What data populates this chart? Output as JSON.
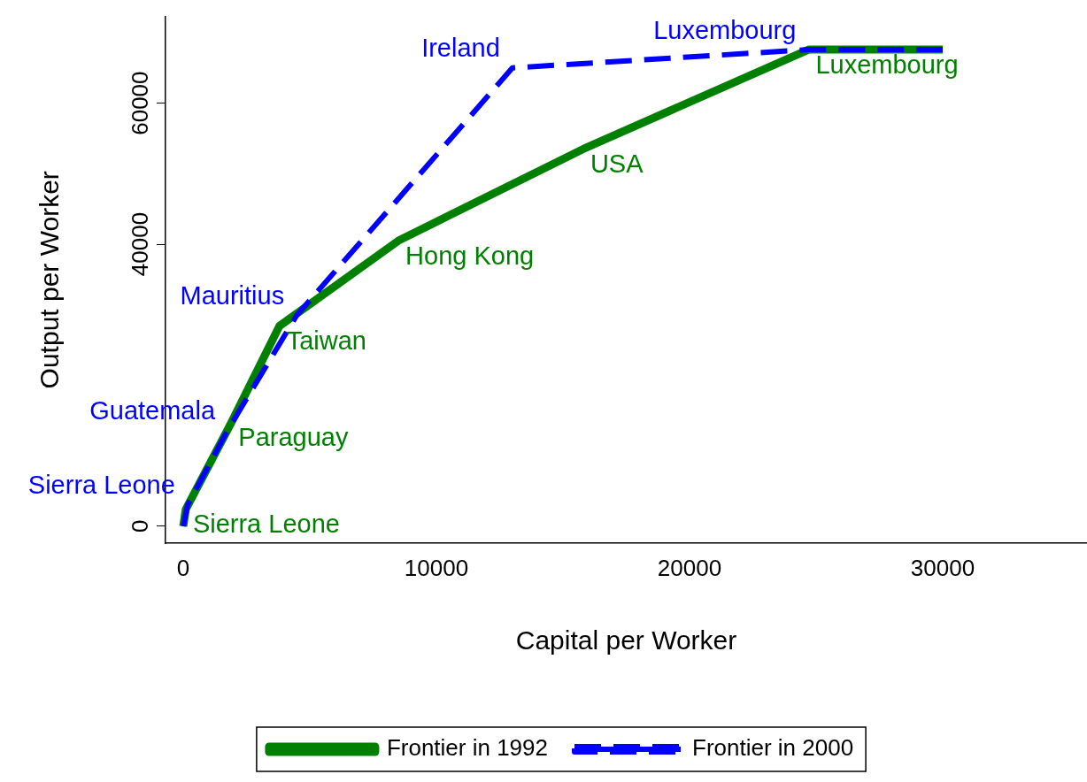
{
  "chart_data": {
    "type": "line",
    "xlabel": "Capital per Worker",
    "ylabel": "Output per Worker",
    "xlim": [
      -700,
      35700
    ],
    "xticks": [
      0,
      10000,
      20000,
      30000
    ],
    "ylim": [
      -2400,
      72300
    ],
    "yticks": [
      0,
      40000,
      60000
    ],
    "grid": false,
    "legend": "bottom",
    "series": [
      {
        "name": "Frontier in 1992",
        "color": "#008000",
        "line_style": "solid",
        "x": [
          0,
          100,
          1900,
          3800,
          8500,
          15800,
          24700,
          30000
        ],
        "values": [
          0,
          2400,
          14700,
          28400,
          40500,
          53500,
          67600,
          67600
        ],
        "value_labels": [
          null,
          "Sierra Leone",
          "Paraguay",
          "Taiwan",
          "Hong Kong",
          "USA",
          "Luxembourg",
          null
        ]
      },
      {
        "name": "Frontier in 2000",
        "color": "#0000ff",
        "line_style": "dashed",
        "x": [
          0,
          170,
          1750,
          4480,
          13000,
          24700,
          30000
        ],
        "values": [
          0,
          3000,
          13600,
          29900,
          65000,
          67600,
          67600
        ],
        "value_labels": [
          null,
          "Sierra Leone",
          "Guatemala",
          "Mauritius",
          "Ireland",
          "Luxembourg",
          null
        ]
      }
    ]
  }
}
